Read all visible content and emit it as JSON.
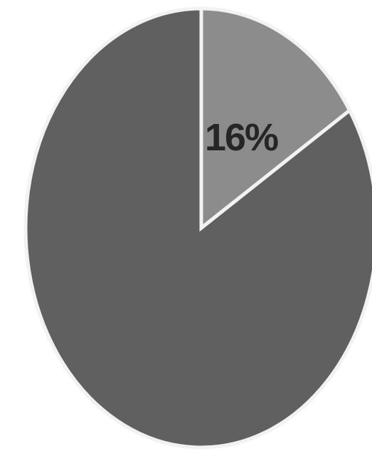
{
  "chart_data": {
    "type": "pie",
    "title": "",
    "slices": [
      {
        "value": 16,
        "label": "16%",
        "color": "#8c8c8c"
      },
      {
        "value": 84,
        "label": "",
        "color": "#606060"
      }
    ],
    "start_angle": "12 o'clock",
    "direction": "clockwise",
    "legend": "none"
  }
}
